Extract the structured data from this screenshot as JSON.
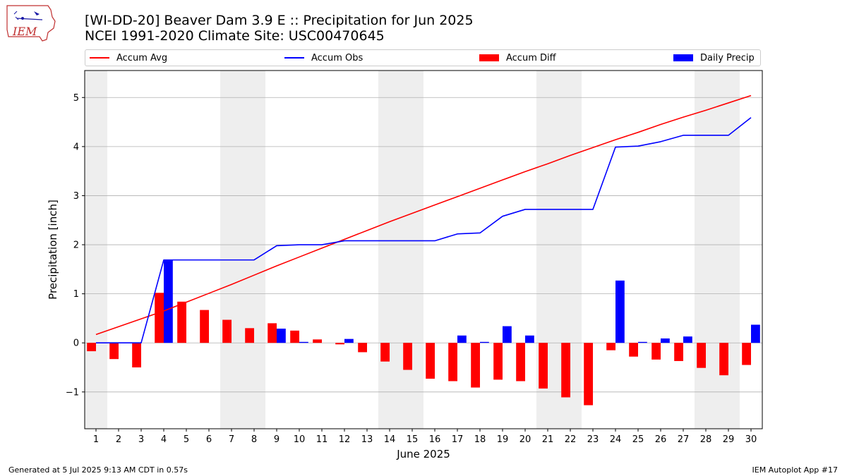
{
  "header": {
    "title": "[WI-DD-20] Beaver Dam 3.9 E :: Precipitation for Jun 2025",
    "subtitle": "NCEI 1991-2020 Climate Site: USC00470645"
  },
  "logo": {
    "text": "IEM",
    "icon": "iem-iowa-logo-icon"
  },
  "footer": {
    "generated": "Generated at 5 Jul 2025 9:13 AM CDT in 0.57s",
    "app": "IEM Autoplot App #17"
  },
  "colors": {
    "avg": "#ff0000",
    "obs": "#0000ff",
    "diff": "#ff0000",
    "precip": "#0000ff",
    "weekend": "#eeeeee",
    "grid": "#b0b0b0"
  },
  "chart_data": {
    "type": "bar",
    "xlabel": "June 2025",
    "ylabel": "Precipitation [inch]",
    "ylim": [
      -1.75,
      5.55
    ],
    "yticks": [
      -1,
      0,
      1,
      2,
      3,
      4,
      5
    ],
    "ytick_labels": [
      "−1",
      "0",
      "1",
      "2",
      "3",
      "4",
      "5"
    ],
    "grid": "horizontal",
    "legend_position": "top",
    "weekend_shading": [
      [
        1,
        1
      ],
      [
        7,
        8
      ],
      [
        14,
        15
      ],
      [
        21,
        22
      ],
      [
        28,
        29
      ]
    ],
    "x": [
      1,
      2,
      3,
      4,
      5,
      6,
      7,
      8,
      9,
      10,
      11,
      12,
      13,
      14,
      15,
      16,
      17,
      18,
      19,
      20,
      21,
      22,
      23,
      24,
      25,
      26,
      27,
      28,
      29,
      30
    ],
    "series": [
      {
        "name": "Accum Avg",
        "kind": "line",
        "values": [
          0.17,
          0.33,
          0.49,
          0.65,
          0.83,
          1.01,
          1.19,
          1.38,
          1.57,
          1.75,
          1.93,
          2.11,
          2.29,
          2.47,
          2.64,
          2.81,
          2.98,
          3.15,
          3.32,
          3.49,
          3.65,
          3.82,
          3.98,
          4.14,
          4.29,
          4.45,
          4.6,
          4.74,
          4.89,
          5.04
        ]
      },
      {
        "name": "Accum Obs",
        "kind": "line",
        "values": [
          0.0,
          0.0,
          0.0,
          1.69,
          1.69,
          1.69,
          1.69,
          1.69,
          1.98,
          2.0,
          2.0,
          2.08,
          2.08,
          2.08,
          2.08,
          2.08,
          2.22,
          2.24,
          2.58,
          2.72,
          2.72,
          2.72,
          2.72,
          3.99,
          4.01,
          4.1,
          4.23,
          4.23,
          4.23,
          4.59
        ]
      },
      {
        "name": "Accum Diff",
        "kind": "bar",
        "values": [
          -0.17,
          -0.33,
          -0.5,
          1.02,
          0.84,
          0.67,
          0.47,
          0.3,
          0.4,
          0.25,
          0.07,
          -0.03,
          -0.19,
          -0.38,
          -0.55,
          -0.73,
          -0.78,
          -0.91,
          -0.75,
          -0.78,
          -0.93,
          -1.11,
          -1.27,
          -0.15,
          -0.28,
          -0.34,
          -0.37,
          -0.51,
          -0.66,
          -0.45
        ]
      },
      {
        "name": "Daily Precip",
        "kind": "bar",
        "values": [
          0.0,
          0.0,
          0.0,
          1.69,
          0.0,
          0.0,
          0.0,
          0.0,
          0.29,
          0.02,
          0.0,
          0.08,
          0.0,
          0.0,
          0.0,
          0.0,
          0.15,
          0.02,
          0.34,
          0.15,
          0.0,
          0.0,
          0.0,
          1.27,
          0.02,
          0.09,
          0.13,
          0.0,
          0.0,
          0.37
        ]
      }
    ]
  }
}
